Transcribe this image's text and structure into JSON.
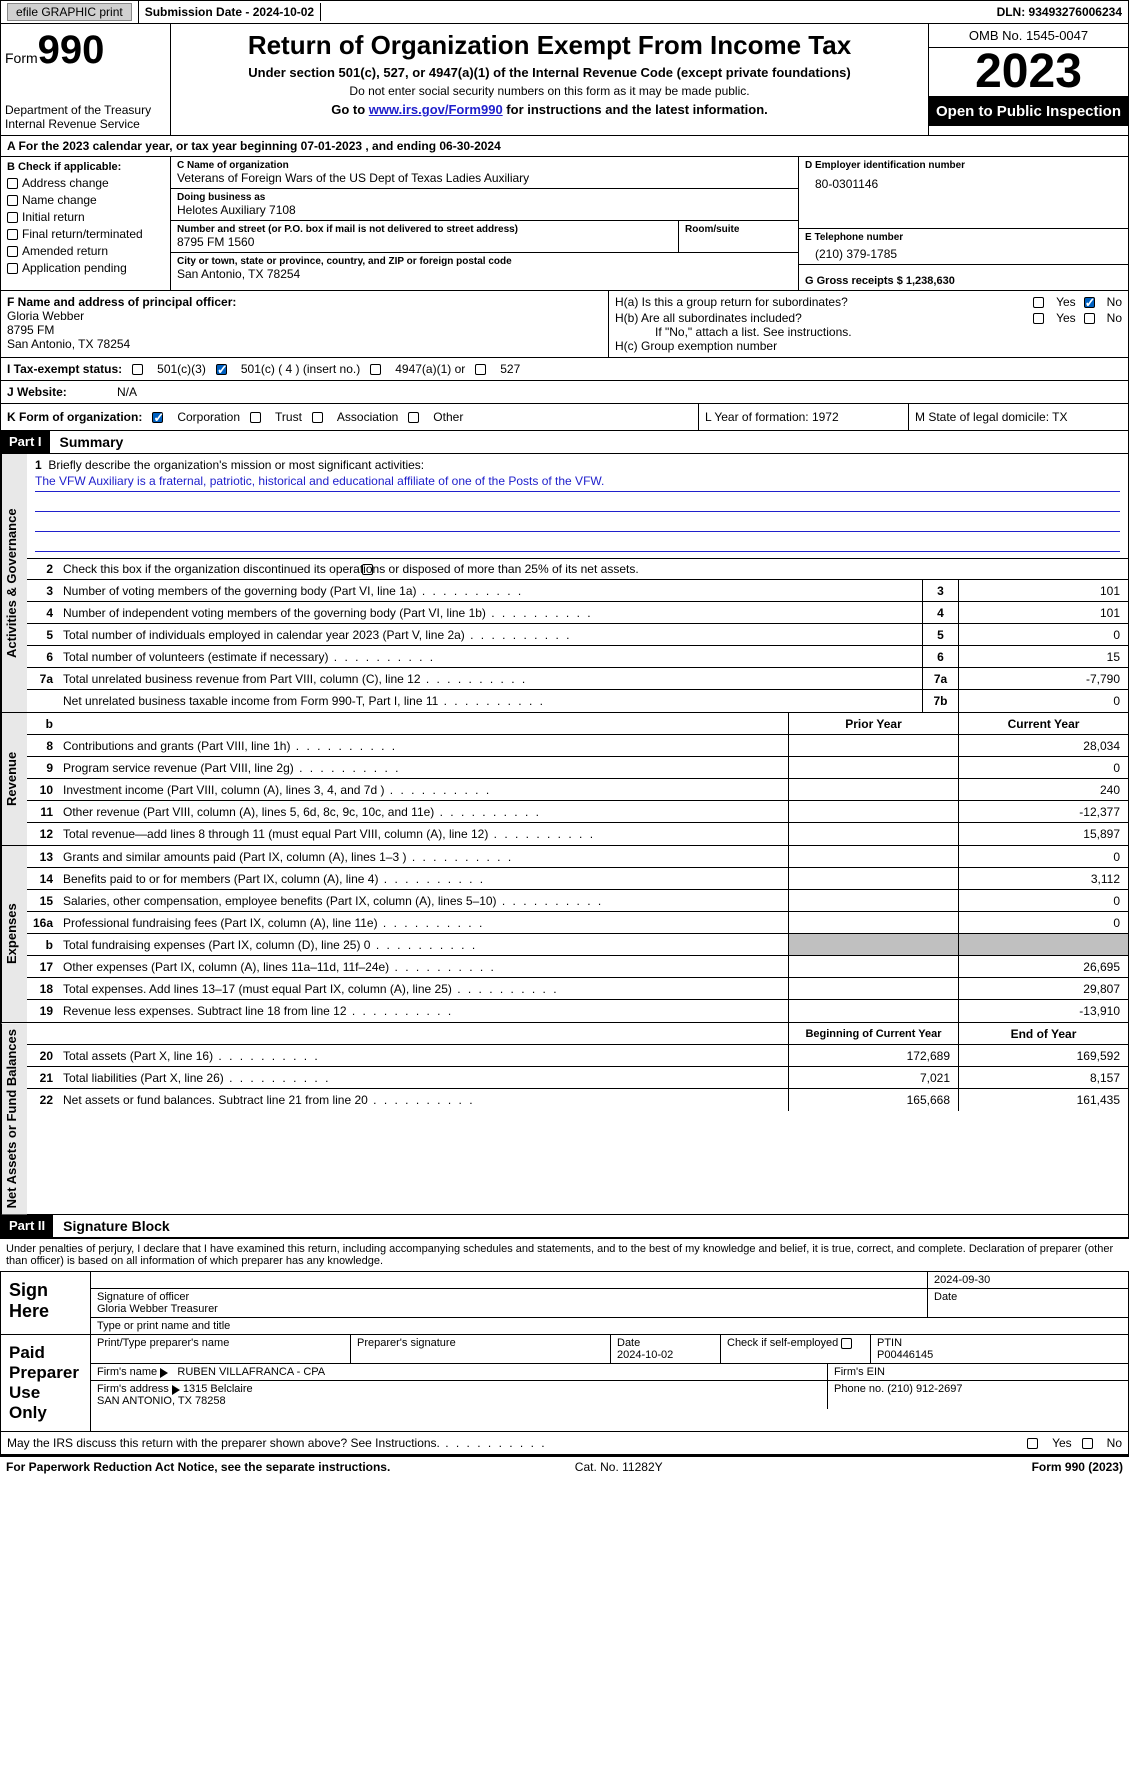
{
  "topbar": {
    "efile": "efile GRAPHIC print",
    "sub_label": "Submission Date - 2024-10-02",
    "dln_label": "DLN: 93493276006234"
  },
  "header": {
    "form_word": "Form",
    "form_num": "990",
    "title": "Return of Organization Exempt From Income Tax",
    "sub1": "Under section 501(c), 527, or 4947(a)(1) of the Internal Revenue Code (except private foundations)",
    "sub2": "Do not enter social security numbers on this form as it may be made public.",
    "sub3_pre": "Go to ",
    "sub3_link": "www.irs.gov/Form990",
    "sub3_post": " for instructions and the latest information.",
    "dept": "Department of the Treasury\nInternal Revenue Service",
    "omb": "OMB No. 1545-0047",
    "year": "2023",
    "open": "Open to Public Inspection"
  },
  "row_a": "A  For the 2023 calendar year, or tax year beginning 07-01-2023   , and ending 06-30-2024",
  "col_b": {
    "hdr": "B Check if applicable:",
    "opts": [
      "Address change",
      "Name change",
      "Initial return",
      "Final return/terminated",
      "Amended return",
      "Application pending"
    ]
  },
  "col_c": {
    "name_lbl": "C Name of organization",
    "name": "Veterans of Foreign Wars of the US Dept of Texas Ladies Auxiliary",
    "dba_lbl": "Doing business as",
    "dba": "Helotes Auxiliary 7108",
    "street_lbl": "Number and street (or P.O. box if mail is not delivered to street address)",
    "street": "8795 FM 1560",
    "room_lbl": "Room/suite",
    "city_lbl": "City or town, state or province, country, and ZIP or foreign postal code",
    "city": "San Antonio, TX  78254"
  },
  "col_d": {
    "ein_lbl": "D Employer identification number",
    "ein": "80-0301146",
    "phone_lbl": "E Telephone number",
    "phone": "(210) 379-1785",
    "gross_lbl": "G Gross receipts $ 1,238,630"
  },
  "row_f": {
    "f_lbl": "F  Name and address of principal officer:",
    "f_name": "Gloria Webber",
    "f_addr1": "8795 FM",
    "f_addr2": "San Antonio, TX  78254",
    "ha": "H(a)  Is this a group return for subordinates?",
    "hb": "H(b)  Are all subordinates included?",
    "hb_note": "If \"No,\" attach a list. See instructions.",
    "hc": "H(c)  Group exemption number",
    "yes": "Yes",
    "no": "No"
  },
  "row_i": {
    "lbl": "I   Tax-exempt status:",
    "o1": "501(c)(3)",
    "o2": "501(c) ( 4 ) (insert no.)",
    "o3": "4947(a)(1) or",
    "o4": "527"
  },
  "row_j": {
    "lbl": "J   Website:",
    "val": "N/A"
  },
  "row_k": {
    "lbl": "K Form of organization:",
    "o1": "Corporation",
    "o2": "Trust",
    "o3": "Association",
    "o4": "Other",
    "l_lbl": "L Year of formation: 1972",
    "m_lbl": "M State of legal domicile: TX"
  },
  "part1": {
    "hdr": "Part I",
    "title": "Summary",
    "l1_lbl": "Briefly describe the organization's mission or most significant activities:",
    "l1_text": "The VFW Auxiliary is a fraternal, patriotic, historical and educational affiliate of one of the Posts of the VFW.",
    "l2": "Check this box       if the organization discontinued its operations or disposed of more than 25% of its net assets.",
    "lines_ag": [
      {
        "n": "3",
        "d": "Number of voting members of the governing body (Part VI, line 1a)",
        "b": "3",
        "v": "101"
      },
      {
        "n": "4",
        "d": "Number of independent voting members of the governing body (Part VI, line 1b)",
        "b": "4",
        "v": "101"
      },
      {
        "n": "5",
        "d": "Total number of individuals employed in calendar year 2023 (Part V, line 2a)",
        "b": "5",
        "v": "0"
      },
      {
        "n": "6",
        "d": "Total number of volunteers (estimate if necessary)",
        "b": "6",
        "v": "15"
      },
      {
        "n": "7a",
        "d": "Total unrelated business revenue from Part VIII, column (C), line 12",
        "b": "7a",
        "v": "-7,790"
      },
      {
        "n": "",
        "d": "Net unrelated business taxable income from Form 990-T, Part I, line 11",
        "b": "7b",
        "v": "0"
      }
    ],
    "prior": "Prior Year",
    "current": "Current Year",
    "lines_rev": [
      {
        "n": "8",
        "d": "Contributions and grants (Part VIII, line 1h)",
        "v": "28,034"
      },
      {
        "n": "9",
        "d": "Program service revenue (Part VIII, line 2g)",
        "v": "0"
      },
      {
        "n": "10",
        "d": "Investment income (Part VIII, column (A), lines 3, 4, and 7d )",
        "v": "240"
      },
      {
        "n": "11",
        "d": "Other revenue (Part VIII, column (A), lines 5, 6d, 8c, 9c, 10c, and 11e)",
        "v": "-12,377"
      },
      {
        "n": "12",
        "d": "Total revenue—add lines 8 through 11 (must equal Part VIII, column (A), line 12)",
        "v": "15,897"
      }
    ],
    "lines_exp": [
      {
        "n": "13",
        "d": "Grants and similar amounts paid (Part IX, column (A), lines 1–3 )",
        "v": "0"
      },
      {
        "n": "14",
        "d": "Benefits paid to or for members (Part IX, column (A), line 4)",
        "v": "3,112"
      },
      {
        "n": "15",
        "d": "Salaries, other compensation, employee benefits (Part IX, column (A), lines 5–10)",
        "v": "0"
      },
      {
        "n": "16a",
        "d": "Professional fundraising fees (Part IX, column (A), line 11e)",
        "v": "0"
      },
      {
        "n": "b",
        "d": "Total fundraising expenses (Part IX, column (D), line 25) 0",
        "v": "",
        "shaded": true
      },
      {
        "n": "17",
        "d": "Other expenses (Part IX, column (A), lines 11a–11d, 11f–24e)",
        "v": "26,695"
      },
      {
        "n": "18",
        "d": "Total expenses. Add lines 13–17 (must equal Part IX, column (A), line 25)",
        "v": "29,807"
      },
      {
        "n": "19",
        "d": "Revenue less expenses. Subtract line 18 from line 12",
        "v": "-13,910"
      }
    ],
    "boy": "Beginning of Current Year",
    "eoy": "End of Year",
    "lines_na": [
      {
        "n": "20",
        "d": "Total assets (Part X, line 16)",
        "p": "172,689",
        "v": "169,592"
      },
      {
        "n": "21",
        "d": "Total liabilities (Part X, line 26)",
        "p": "7,021",
        "v": "8,157"
      },
      {
        "n": "22",
        "d": "Net assets or fund balances. Subtract line 21 from line 20",
        "p": "165,668",
        "v": "161,435"
      }
    ]
  },
  "side": {
    "ag": "Activities & Governance",
    "rev": "Revenue",
    "exp": "Expenses",
    "na": "Net Assets or Fund Balances"
  },
  "part2": {
    "hdr": "Part II",
    "title": "Signature Block",
    "intro": "Under penalties of perjury, I declare that I have examined this return, including accompanying schedules and statements, and to the best of my knowledge and belief, it is true, correct, and complete. Declaration of preparer (other than officer) is based on all information of which preparer has any knowledge.",
    "sign_here": "Sign Here",
    "sig_of": "Signature of officer",
    "sig_name": "Gloria Webber Treasurer",
    "sig_type": "Type or print name and title",
    "date_lbl": "Date",
    "sig_date": "2024-09-30",
    "paid": "Paid Preparer Use Only",
    "prep_name_lbl": "Print/Type preparer's name",
    "prep_sig_lbl": "Preparer's signature",
    "prep_date": "2024-10-02",
    "self_lbl": "Check        if self-employed",
    "ptin_lbl": "PTIN",
    "ptin": "P00446145",
    "firm_name_lbl": "Firm's name",
    "firm_name": "RUBEN VILLAFRANCA - CPA",
    "firm_ein_lbl": "Firm's EIN",
    "firm_addr_lbl": "Firm's address",
    "firm_addr": "1315 Belclaire\nSAN ANTONIO, TX  78258",
    "firm_phone_lbl": "Phone no. (210) 912-2697",
    "may": "May the IRS discuss this return with the preparer shown above? See Instructions."
  },
  "footer": {
    "left": "For Paperwork Reduction Act Notice, see the separate instructions.",
    "mid": "Cat. No. 11282Y",
    "right": "Form 990 (2023)"
  }
}
